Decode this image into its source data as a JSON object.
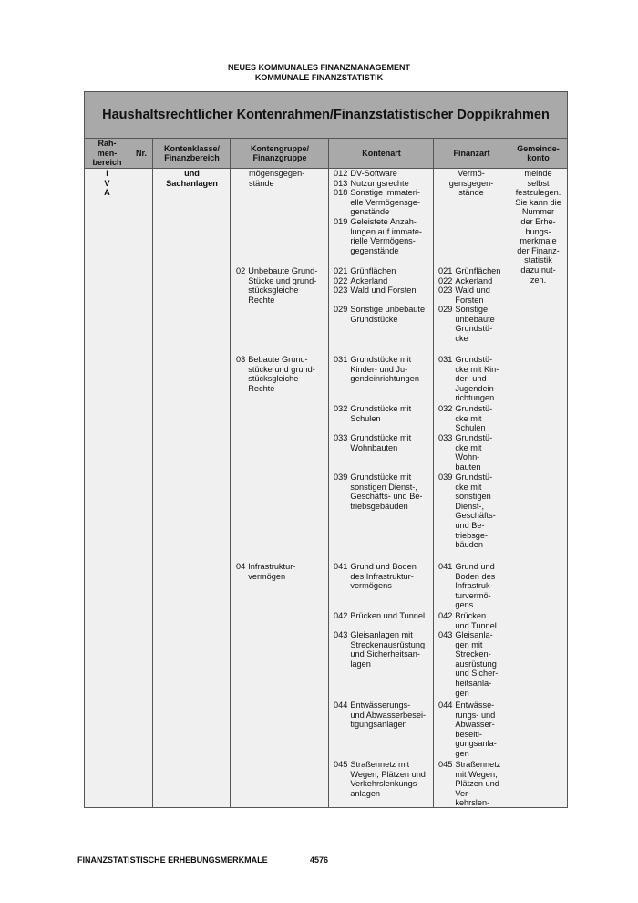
{
  "header": {
    "line1": "NEUES KOMMUNALES FINANZMANAGEMENT",
    "line2": "KOMMUNALE FINANZSTATISTIK"
  },
  "table": {
    "title": "Haushaltsrechtlicher Kontenrahmen/Finanzstatistischer Doppikrahmen",
    "columns": [
      "Rah-\nmen-\nbereich",
      "Nr.",
      "Kontenklasse/\nFinanzbereich",
      "Kontengruppe/\nFinanzgruppe",
      "Kontenart",
      "Finanzart",
      "Gemeinde-\nkonto"
    ],
    "rahmenbereich": "I\nV\nA",
    "kontenklasse": "und\nSachanlagen",
    "kontengruppe": [
      {
        "code": "",
        "text": "mögensgegen-\nstände"
      },
      {
        "code": "02",
        "text": "Unbebaute Grund-\nStücke und grund-\nstücksgleiche\nRechte"
      },
      {
        "code": "03",
        "text": "Bebaute Grund-\nstücke und grund-\nstücksgleiche\nRechte"
      },
      {
        "code": "04",
        "text": "Infrastruktur-\nvermögen"
      }
    ],
    "kontenart": [
      {
        "code": "012",
        "text": "DV-Software"
      },
      {
        "code": "013",
        "text": "Nutzungsrechte"
      },
      {
        "code": "018",
        "text": "Sonstige immateri-\nelle Vermögensge-\ngenstände"
      },
      {
        "code": "019",
        "text": "Geleistete Anzah-\nlungen auf immate-\nrielle Vermögens-\ngegenstände"
      },
      {
        "code": "021",
        "text": "Grünflächen"
      },
      {
        "code": "022",
        "text": "Ackerland"
      },
      {
        "code": "023",
        "text": "Wald und Forsten"
      },
      {
        "code": "029",
        "text": "Sonstige unbebaute\nGrundstücke"
      },
      {
        "code": "031",
        "text": "Grundstücke mit\nKinder- und Ju-\ngendeinrichtungen"
      },
      {
        "code": "032",
        "text": "Grundstücke mit\nSchulen"
      },
      {
        "code": "033",
        "text": "Grundstücke mit\nWohnbauten"
      },
      {
        "code": "039",
        "text": "Grundstücke mit\nsonstigen Dienst-,\nGeschäfts- und Be-\ntriebsgebäuden"
      },
      {
        "code": "041",
        "text": "Grund und Boden\ndes Infrastruktur-\nvermögens"
      },
      {
        "code": "042",
        "text": "Brücken und Tunnel"
      },
      {
        "code": "043",
        "text": "Gleisanlagen mit\nStreckenausrüstung\nund Sicherheitsan-\nlagen"
      },
      {
        "code": "044",
        "text": "Entwässerungs-\nund Abwasserbesei-\ntigungsanlagen"
      },
      {
        "code": "045",
        "text": "Straßennetz mit\nWegen, Plätzen und\nVerkehrslenkungs-\nanlagen"
      }
    ],
    "finanzart": [
      {
        "code": "",
        "text": "Vermö-\ngensgegen-\nstände"
      },
      {
        "code": "021",
        "text": "Grünflächen"
      },
      {
        "code": "022",
        "text": "Ackerland"
      },
      {
        "code": "023",
        "text": "Wald und\nForsten"
      },
      {
        "code": "029",
        "text": "Sonstige\nunbebaute\nGrundstü-\ncke"
      },
      {
        "code": "031",
        "text": "Grundstü-\ncke mit Kin-\nder- und\nJugendein-\nrichtungen"
      },
      {
        "code": "032",
        "text": "Grundstü-\ncke mit\nSchulen"
      },
      {
        "code": "033",
        "text": "Grundstü-\ncke mit\nWohn-\nbauten"
      },
      {
        "code": "039",
        "text": "Grundstü-\ncke mit\nsonstigen\nDienst-,\nGeschäfts-\nund Be-\ntriebsge-\nbäuden"
      },
      {
        "code": "041",
        "text": "Grund und\nBoden des\nInfrastruk-\nturvermö-\ngens"
      },
      {
        "code": "042",
        "text": "Brücken\nund Tunnel"
      },
      {
        "code": "043",
        "text": "Gleisanla-\ngen mit\nStrecken-\nausrüstung\nund Sicher-\nheitsanla-\ngen"
      },
      {
        "code": "044",
        "text": "Entwässe-\nrungs- und\nAbwasser-\nbeseiti-\ngungsanla-\ngen"
      },
      {
        "code": "045",
        "text": "Straßennetz\nmit Wegen,\nPlätzen und\nVer-\nkehrslen-"
      }
    ],
    "gemeindekonto": "meinde\nselbst\nfestzulegen.\nSie kann die\nNummer\nder Erhe-\nbungs-\nmerkmale\nder Finanz-\nstatistik\ndazu nut-\nzen."
  },
  "footer": {
    "left": "FINANZSTATISTISCHE ERHEBUNGSMERKMALE",
    "page": "4576"
  }
}
